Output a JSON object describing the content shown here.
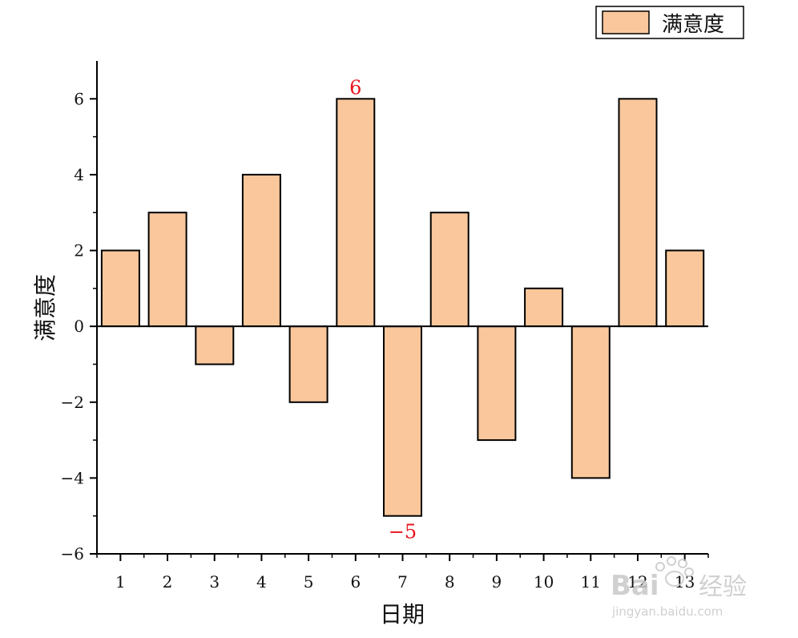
{
  "chart_data": {
    "type": "bar",
    "categories": [
      "1",
      "2",
      "3",
      "4",
      "5",
      "6",
      "7",
      "8",
      "9",
      "10",
      "11",
      "12",
      "13"
    ],
    "series": [
      {
        "name": "满意度",
        "values": [
          2,
          3,
          -1,
          4,
          -2,
          6,
          -5,
          3,
          -3,
          1,
          -4,
          6,
          2
        ]
      }
    ],
    "xlabel": "日期",
    "ylabel": "满意度",
    "ylim": [
      -6,
      7
    ],
    "yticks": [
      -6,
      -4,
      -2,
      0,
      2,
      4,
      6
    ],
    "ytick_labels": [
      "−6",
      "−4",
      "−2",
      "0",
      "2",
      "4",
      "6"
    ],
    "annotations": [
      {
        "category": "6",
        "text": "6",
        "color": "#e8141c"
      },
      {
        "category": "7",
        "text": "−5",
        "color": "#e8141c"
      }
    ],
    "legend_position": "top-right",
    "grid": false,
    "bar_color": "#f9c79b",
    "edge_color": "#000000"
  },
  "watermark": {
    "brand": "Bai",
    "brand_suffix": "经验",
    "url": "jingyan.baidu.com"
  }
}
